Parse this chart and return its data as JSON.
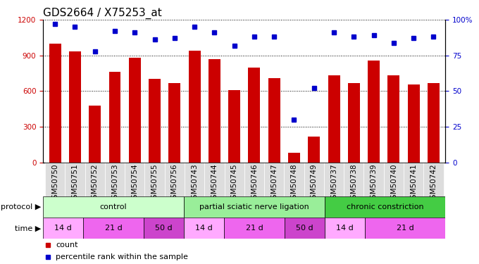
{
  "title": "GDS2664 / X75253_at",
  "samples": [
    "GSM50750",
    "GSM50751",
    "GSM50752",
    "GSM50753",
    "GSM50754",
    "GSM50755",
    "GSM50756",
    "GSM50743",
    "GSM50744",
    "GSM50745",
    "GSM50746",
    "GSM50747",
    "GSM50748",
    "GSM50749",
    "GSM50737",
    "GSM50738",
    "GSM50739",
    "GSM50740",
    "GSM50741",
    "GSM50742"
  ],
  "counts": [
    1000,
    935,
    480,
    760,
    880,
    700,
    670,
    940,
    870,
    610,
    800,
    710,
    80,
    220,
    730,
    670,
    860,
    730,
    655,
    665
  ],
  "percentiles": [
    97,
    95,
    78,
    92,
    91,
    86,
    87,
    95,
    91,
    82,
    88,
    88,
    30,
    52,
    91,
    88,
    89,
    84,
    87,
    88
  ],
  "bar_color": "#cc0000",
  "dot_color": "#0000cc",
  "ylim_left": [
    0,
    1200
  ],
  "ylim_right": [
    0,
    100
  ],
  "yticks_left": [
    0,
    300,
    600,
    900,
    1200
  ],
  "yticks_right": [
    0,
    25,
    50,
    75,
    100
  ],
  "yticklabels_right": [
    "0",
    "25",
    "50",
    "75",
    "100%"
  ],
  "protocol_groups": [
    {
      "label": "control",
      "start": 0,
      "end": 7,
      "color": "#ccffcc"
    },
    {
      "label": "partial sciatic nerve ligation",
      "start": 7,
      "end": 14,
      "color": "#99ee99"
    },
    {
      "label": "chronic constriction",
      "start": 14,
      "end": 20,
      "color": "#44cc44"
    }
  ],
  "time_groups": [
    {
      "label": "14 d",
      "start": 0,
      "end": 2,
      "color": "#ffaaff"
    },
    {
      "label": "21 d",
      "start": 2,
      "end": 5,
      "color": "#ee66ee"
    },
    {
      "label": "50 d",
      "start": 5,
      "end": 7,
      "color": "#cc44cc"
    },
    {
      "label": "14 d",
      "start": 7,
      "end": 9,
      "color": "#ffaaff"
    },
    {
      "label": "21 d",
      "start": 9,
      "end": 12,
      "color": "#ee66ee"
    },
    {
      "label": "50 d",
      "start": 12,
      "end": 14,
      "color": "#cc44cc"
    },
    {
      "label": "14 d",
      "start": 14,
      "end": 16,
      "color": "#ffaaff"
    },
    {
      "label": "21 d",
      "start": 16,
      "end": 20,
      "color": "#ee66ee"
    }
  ],
  "bg_color": "#ffffff",
  "title_fontsize": 11,
  "tick_fontsize": 7.5,
  "label_fontsize": 8.0
}
